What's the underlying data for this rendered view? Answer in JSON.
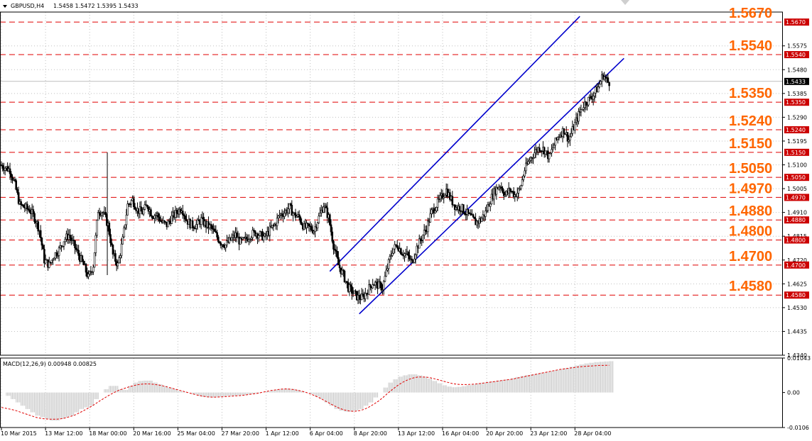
{
  "header": {
    "symbol_label": "GBPUSD,H4",
    "ohlc": "1.5458 1.5472 1.5395 1.5433"
  },
  "colors": {
    "up_candle": "#ffffff",
    "candle_border": "#000000",
    "level_line": "#e00000",
    "level_label": "#ff6600",
    "channel_line": "#0000cc",
    "histogram": "#c8c8c8",
    "signal": "#e00000",
    "current_price_box": "#000000",
    "level_box": "#cc0000"
  },
  "chart_data": [
    {
      "type": "candlestick",
      "title": "GBPUSD,H4",
      "ylim": [
        1.434,
        1.571
      ],
      "y_tick_labels": [
        "1.5575",
        "1.5480",
        "1.5385",
        "1.5290",
        "1.5195",
        "1.5100",
        "1.5005",
        "1.4910",
        "1.4815",
        "1.4720",
        "1.4625",
        "1.4530",
        "1.4435",
        "1.4340"
      ],
      "x_tick_labels": [
        "10 Mar 2015",
        "13 Mar 12:00",
        "18 Mar 00:00",
        "20 Mar 16:00",
        "25 Mar 04:00",
        "27 Mar 20:00",
        "1 Apr 12:00",
        "6 Apr 04:00",
        "8 Apr 20:00",
        "13 Apr 12:00",
        "16 Apr 04:00",
        "20 Apr 20:00",
        "23 Apr 12:00",
        "28 Apr 04:00"
      ],
      "current_price": "1.5433",
      "levels": [
        {
          "value": 1.567,
          "label": "1.5670"
        },
        {
          "value": 1.554,
          "label": "1.5540"
        },
        {
          "value": 1.535,
          "label": "1.5350"
        },
        {
          "value": 1.524,
          "label": "1.5240"
        },
        {
          "value": 1.515,
          "label": "1.5150"
        },
        {
          "value": 1.505,
          "label": "1.5050"
        },
        {
          "value": 1.497,
          "label": "1.4970"
        },
        {
          "value": 1.488,
          "label": "1.4880"
        },
        {
          "value": 1.48,
          "label": "1.4800"
        },
        {
          "value": 1.47,
          "label": "1.4700"
        },
        {
          "value": 1.458,
          "label": "1.4580"
        }
      ],
      "channel": {
        "upper": {
          "from": [
            67,
            1.4675
          ],
          "to": [
            118,
            1.5693
          ]
        },
        "lower": {
          "from": [
            73,
            1.4505
          ],
          "to": [
            127,
            1.5525
          ]
        }
      },
      "price_path": [
        [
          0,
          1.51
        ],
        [
          2,
          1.508
        ],
        [
          3,
          1.502
        ],
        [
          4,
          1.494
        ],
        [
          6,
          1.492
        ],
        [
          7,
          1.489
        ],
        [
          8,
          1.484
        ],
        [
          9,
          1.472
        ],
        [
          10,
          1.47
        ],
        [
          11,
          1.474
        ],
        [
          12,
          1.476
        ],
        [
          13,
          1.48
        ],
        [
          14,
          1.482
        ],
        [
          15,
          1.478
        ],
        [
          16,
          1.474
        ],
        [
          17,
          1.47
        ],
        [
          18,
          1.465
        ],
        [
          19,
          1.47
        ],
        [
          20,
          1.492
        ],
        [
          21,
          1.491
        ],
        [
          22,
          1.486
        ],
        [
          23,
          1.474
        ],
        [
          24,
          1.47
        ],
        [
          25,
          1.48
        ],
        [
          26,
          1.494
        ],
        [
          27,
          1.496
        ],
        [
          28,
          1.492
        ],
        [
          29,
          1.491
        ],
        [
          30,
          1.494
        ],
        [
          31,
          1.49
        ],
        [
          32,
          1.49
        ],
        [
          33,
          1.487
        ],
        [
          34,
          1.486
        ],
        [
          35,
          1.489
        ],
        [
          36,
          1.491
        ],
        [
          37,
          1.493
        ],
        [
          38,
          1.488
        ],
        [
          39,
          1.486
        ],
        [
          40,
          1.486
        ],
        [
          41,
          1.488
        ],
        [
          42,
          1.486
        ],
        [
          43,
          1.485
        ],
        [
          44,
          1.482
        ],
        [
          45,
          1.479
        ],
        [
          46,
          1.478
        ],
        [
          47,
          1.48
        ],
        [
          48,
          1.482
        ],
        [
          49,
          1.479
        ],
        [
          50,
          1.48
        ],
        [
          51,
          1.482
        ],
        [
          52,
          1.483
        ],
        [
          53,
          1.482
        ],
        [
          54,
          1.481
        ],
        [
          55,
          1.484
        ],
        [
          56,
          1.486
        ],
        [
          57,
          1.49
        ],
        [
          58,
          1.491
        ],
        [
          59,
          1.493
        ],
        [
          60,
          1.49
        ],
        [
          61,
          1.489
        ],
        [
          62,
          1.485
        ],
        [
          63,
          1.485
        ],
        [
          64,
          1.484
        ],
        [
          65,
          1.489
        ],
        [
          66,
          1.494
        ],
        [
          67,
          1.489
        ],
        [
          68,
          1.478
        ],
        [
          69,
          1.47
        ],
        [
          70,
          1.466
        ],
        [
          71,
          1.461
        ],
        [
          72,
          1.459
        ],
        [
          73,
          1.457
        ],
        [
          74,
          1.457
        ],
        [
          75,
          1.46
        ],
        [
          76,
          1.463
        ],
        [
          77,
          1.462
        ],
        [
          78,
          1.461
        ],
        [
          79,
          1.469
        ],
        [
          80,
          1.476
        ],
        [
          81,
          1.478
        ],
        [
          82,
          1.475
        ],
        [
          83,
          1.474
        ],
        [
          84,
          1.471
        ],
        [
          85,
          1.477
        ],
        [
          86,
          1.481
        ],
        [
          87,
          1.485
        ],
        [
          88,
          1.491
        ],
        [
          89,
          1.494
        ],
        [
          90,
          1.497
        ],
        [
          91,
          1.5
        ],
        [
          92,
          1.496
        ],
        [
          93,
          1.493
        ],
        [
          94,
          1.493
        ],
        [
          95,
          1.491
        ],
        [
          96,
          1.489
        ],
        [
          97,
          1.487
        ],
        [
          98,
          1.488
        ],
        [
          99,
          1.491
        ],
        [
          100,
          1.496
        ],
        [
          101,
          1.5
        ],
        [
          102,
          1.502
        ],
        [
          103,
          1.498
        ],
        [
          104,
          1.5
        ],
        [
          105,
          1.498
        ],
        [
          106,
          1.5
        ],
        [
          107,
          1.508
        ],
        [
          108,
          1.512
        ],
        [
          109,
          1.515
        ],
        [
          110,
          1.517
        ],
        [
          111,
          1.516
        ],
        [
          112,
          1.513
        ],
        [
          113,
          1.518
        ],
        [
          114,
          1.522
        ],
        [
          115,
          1.524
        ],
        [
          116,
          1.52
        ],
        [
          117,
          1.525
        ],
        [
          118,
          1.53
        ],
        [
          119,
          1.534
        ],
        [
          120,
          1.536
        ],
        [
          121,
          1.538
        ],
        [
          122,
          1.541
        ],
        [
          123,
          1.546
        ],
        [
          124,
          1.543
        ]
      ]
    },
    {
      "type": "macd",
      "title": "MACD(12,26,9) 0.00948 0.00825",
      "ylim": [
        -0.0106,
        0.01043
      ],
      "y_tick_labels": [
        "0.01043",
        "0.00",
        "-0.0106"
      ],
      "histogram": [
        0.0,
        -0.001,
        -0.002,
        -0.003,
        -0.004,
        -0.005,
        -0.006,
        -0.007,
        -0.0075,
        -0.008,
        -0.0085,
        -0.0085,
        -0.008,
        -0.0075,
        -0.007,
        -0.006,
        -0.005,
        -0.0045,
        -0.004,
        -0.002,
        0.0,
        0.001,
        0.002,
        0.002,
        0.001,
        0.0008,
        0.002,
        0.003,
        0.0035,
        0.0036,
        0.0036,
        0.003,
        0.0025,
        0.002,
        0.0015,
        0.001,
        0.0005,
        0.0002,
        0.0,
        -0.0005,
        -0.001,
        -0.0013,
        -0.0015,
        -0.0015,
        -0.0013,
        -0.0012,
        -0.001,
        -0.001,
        -0.0009,
        -0.0008,
        -0.0006,
        -0.0004,
        -0.0002,
        0.0,
        0.0003,
        0.0006,
        0.0009,
        0.0011,
        0.0012,
        0.0011,
        0.0008,
        0.0004,
        0.0,
        -0.0005,
        -0.0012,
        -0.002,
        -0.003,
        -0.004,
        -0.005,
        -0.0055,
        -0.0058,
        -0.0058,
        -0.0055,
        -0.005,
        -0.004,
        -0.003,
        -0.0015,
        0.0,
        0.0015,
        0.003,
        0.004,
        0.0048,
        0.0052,
        0.0055,
        0.0055,
        0.0052,
        0.0048,
        0.0042,
        0.0035,
        0.0028,
        0.0022,
        0.0018,
        0.0016,
        0.0017,
        0.0019,
        0.0022,
        0.0025,
        0.0028,
        0.003,
        0.0032,
        0.0034,
        0.0036,
        0.0038,
        0.004,
        0.0043,
        0.0047,
        0.005,
        0.0053,
        0.0055,
        0.0057,
        0.006,
        0.0062,
        0.0065,
        0.0068,
        0.0071,
        0.0074,
        0.0078,
        0.0082,
        0.0085,
        0.0088,
        0.009,
        0.0092,
        0.0093,
        0.0094,
        0.00948
      ],
      "signal": [
        -0.0045,
        -0.0048,
        -0.0051,
        -0.0055,
        -0.006,
        -0.0065,
        -0.007,
        -0.0075,
        -0.0078,
        -0.008,
        -0.0081,
        -0.0081,
        -0.008,
        -0.0077,
        -0.0073,
        -0.0068,
        -0.0061,
        -0.0053,
        -0.0045,
        -0.0036,
        -0.0026,
        -0.0017,
        -0.0008,
        0.0,
        0.0007,
        0.0012,
        0.0017,
        0.0021,
        0.0024,
        0.0026,
        0.0026,
        0.0025,
        0.0023,
        0.002,
        0.0016,
        0.0012,
        0.0008,
        0.0004,
        0.0,
        -0.0004,
        -0.0008,
        -0.0011,
        -0.0013,
        -0.0014,
        -0.0014,
        -0.0013,
        -0.0012,
        -0.0011,
        -0.001,
        -0.0009,
        -0.0007,
        -0.0005,
        -0.0003,
        0.0,
        0.0003,
        0.0006,
        0.0008,
        0.001,
        0.0011,
        0.001,
        0.0008,
        0.0005,
        0.0001,
        -0.0004,
        -0.001,
        -0.0017,
        -0.0025,
        -0.0033,
        -0.0041,
        -0.0048,
        -0.0053,
        -0.0056,
        -0.0057,
        -0.0055,
        -0.0051,
        -0.0044,
        -0.0035,
        -0.0025,
        -0.0013,
        0.0,
        0.0012,
        0.0023,
        0.0032,
        0.0039,
        0.0044,
        0.0047,
        0.0047,
        0.0046,
        0.0043,
        0.0039,
        0.0035,
        0.0031,
        0.0027,
        0.0025,
        0.0024,
        0.0024,
        0.0025,
        0.0026,
        0.0028,
        0.003,
        0.0032,
        0.0034,
        0.0036,
        0.0038,
        0.004,
        0.0043,
        0.0046,
        0.0049,
        0.0052,
        0.0055,
        0.0058,
        0.0061,
        0.0064,
        0.0067,
        0.007,
        0.0072,
        0.0074,
        0.0076,
        0.0078,
        0.0079,
        0.008,
        0.0081,
        0.0082,
        0.00823,
        0.00825
      ]
    }
  ]
}
